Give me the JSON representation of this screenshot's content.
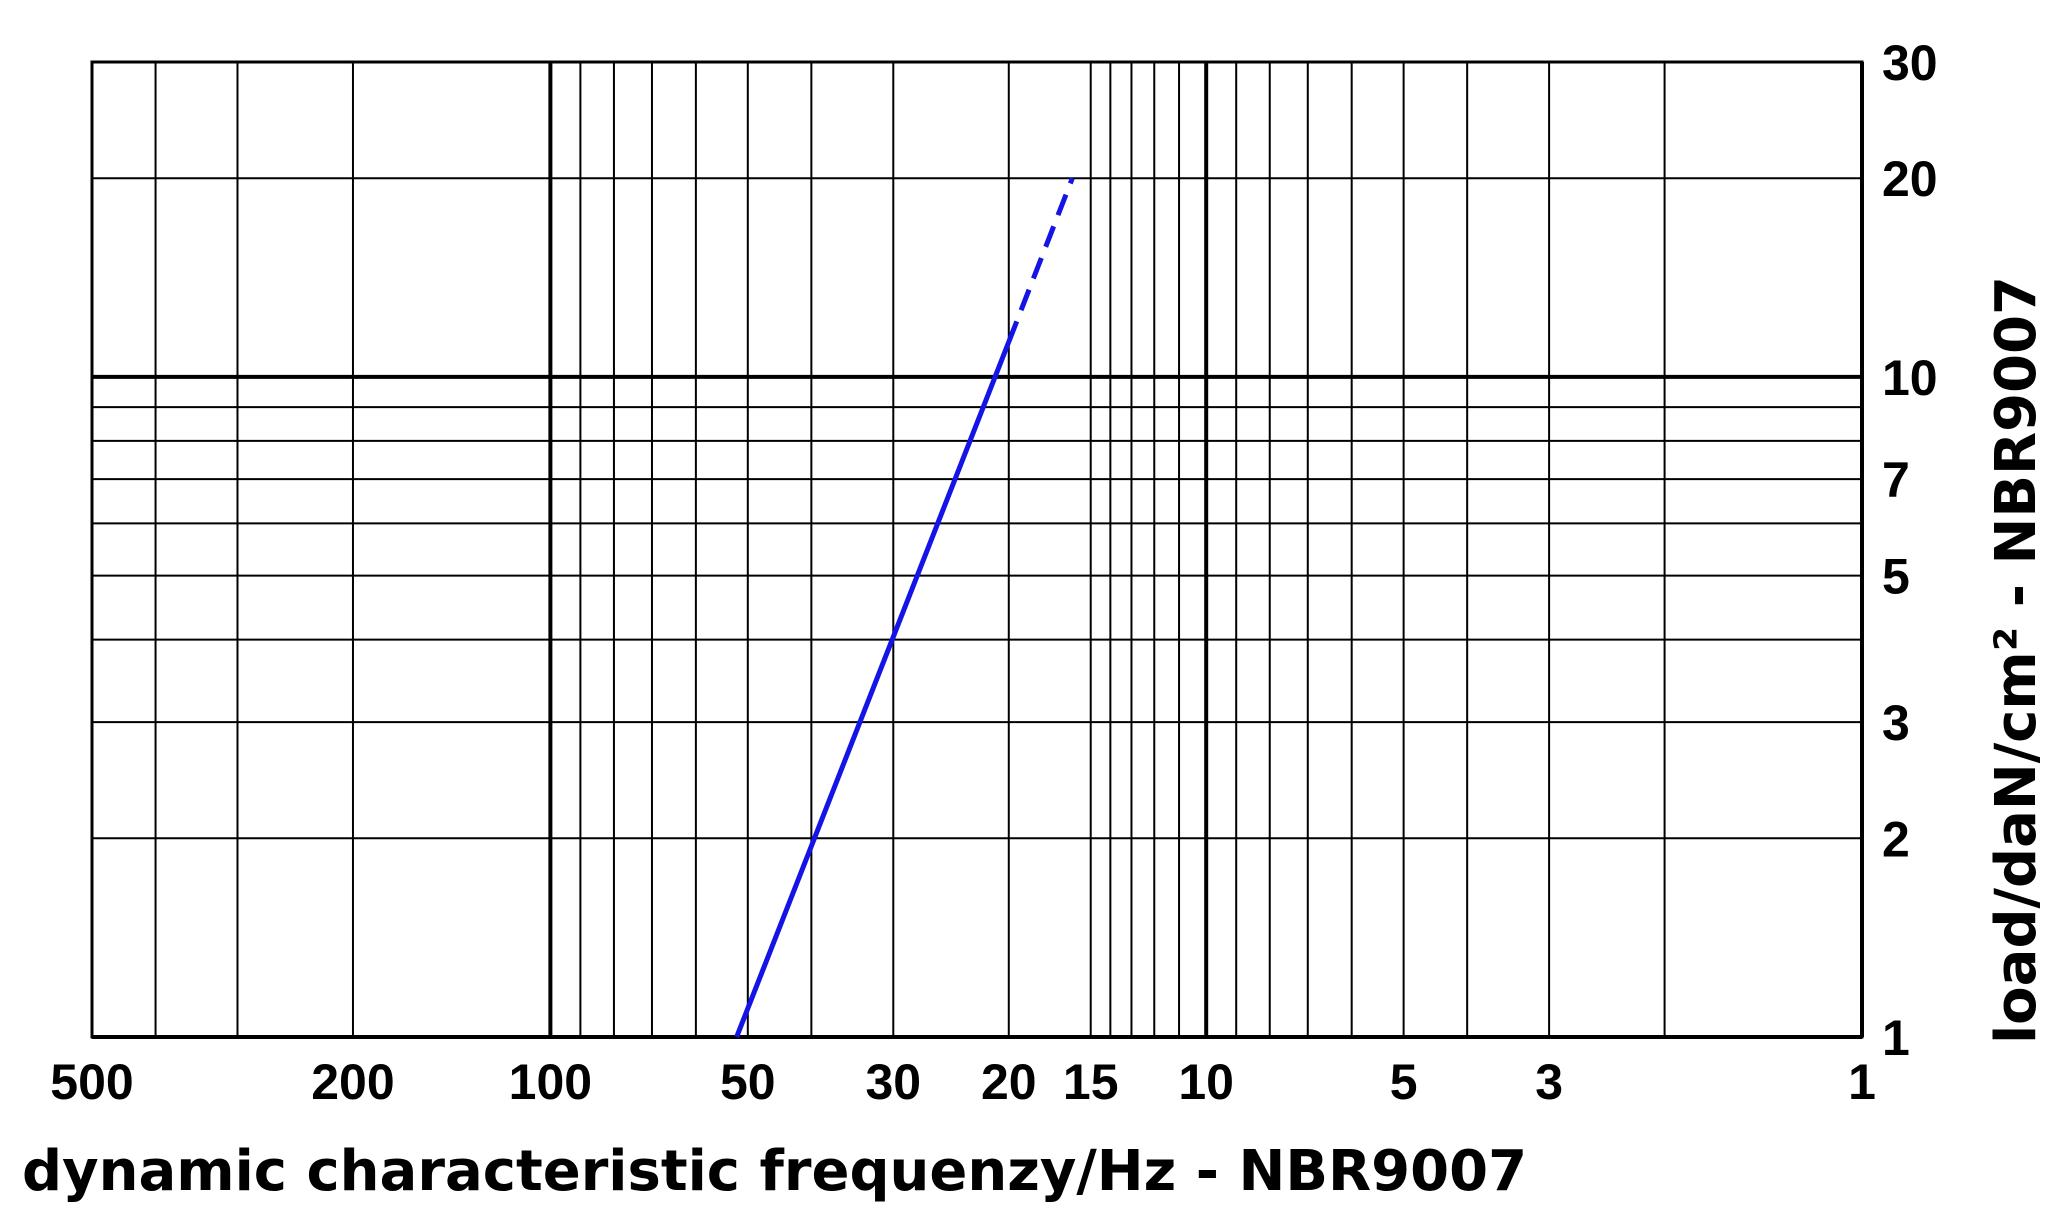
{
  "chart_data": {
    "type": "line",
    "x_label": "dynamic characteristic frequenzy/Hz - NBR9007",
    "y_label": "load/daN/cm² - NBR9007",
    "xscale": "log",
    "yscale": "log",
    "x_reversed": true,
    "y_axis_side": "right",
    "grid": true,
    "xlim": [
      500,
      1
    ],
    "ylim": [
      1,
      30
    ],
    "xticks": [
      500,
      200,
      100,
      50,
      30,
      20,
      15,
      10,
      5,
      3,
      1
    ],
    "yticks": [
      1,
      2,
      3,
      5,
      7,
      10,
      20,
      30
    ],
    "xgrid": [
      500,
      400,
      300,
      200,
      100,
      90,
      80,
      70,
      60,
      50,
      40,
      30,
      20,
      15,
      14,
      13,
      12,
      11,
      10,
      9,
      8,
      7,
      6,
      5,
      4,
      3,
      2,
      1
    ],
    "ygrid": [
      1,
      2,
      3,
      4,
      5,
      6,
      7,
      8,
      9,
      10,
      20,
      30
    ],
    "series": [
      {
        "color": "#1414e6",
        "style": "solid",
        "x": [
          52,
          20
        ],
        "values": [
          1,
          11.3
        ]
      },
      {
        "color": "#1414e6",
        "style": "dashed",
        "x": [
          20,
          16
        ],
        "values": [
          11.3,
          20
        ]
      }
    ]
  }
}
